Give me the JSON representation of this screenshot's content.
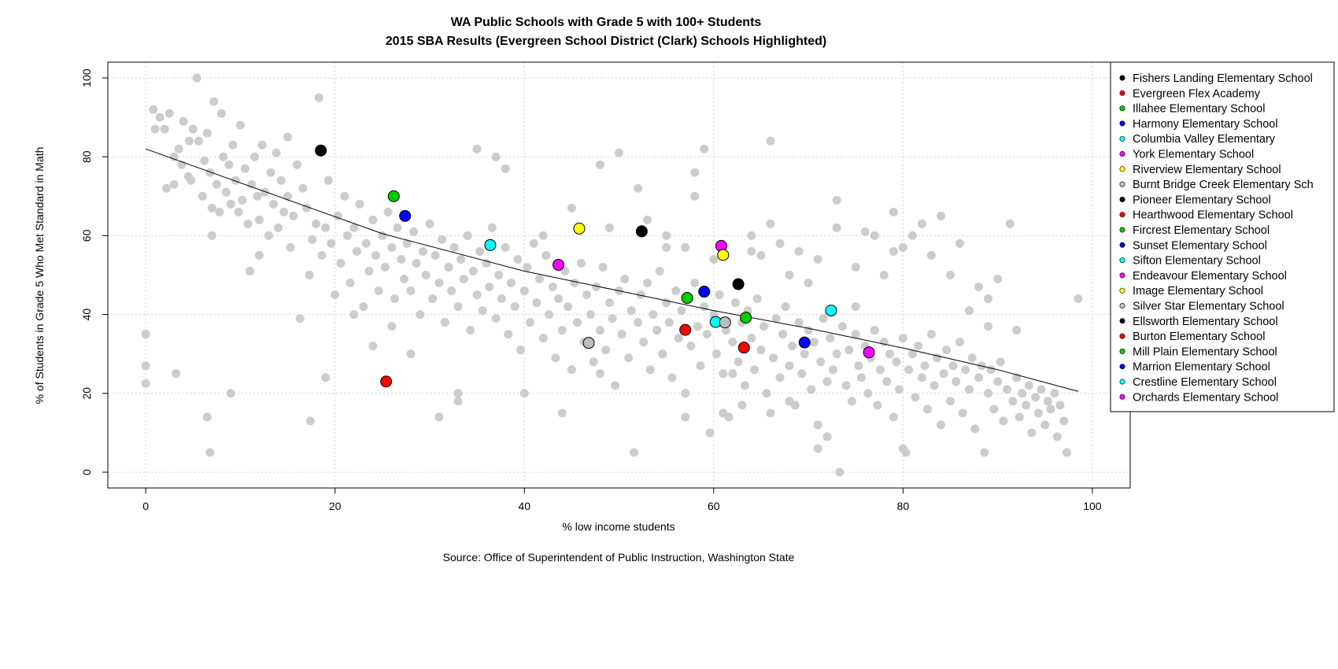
{
  "chart_data": {
    "type": "scatter",
    "title": "WA Public Schools with Grade 5 with 100+ Students",
    "subtitle": "2015 SBA Results (Evergreen School District (Clark) Schools Highlighted)",
    "xlabel": "% low income students",
    "ylabel": "% of Students in Grade 5 Who Met Standard in Math",
    "source": "Source: Office of Superintendent of Public Instruction, Washington State",
    "xlim": [
      -4,
      104
    ],
    "ylim": [
      -4,
      104
    ],
    "x_ticks": [
      0,
      20,
      40,
      60,
      80,
      100
    ],
    "y_ticks": [
      0,
      20,
      40,
      60,
      80,
      100
    ],
    "grid": true,
    "legend_position": "top-right",
    "background_color": "#cccccc",
    "trend_line": {
      "x": [
        0,
        25,
        40,
        50,
        60,
        70,
        80,
        90,
        98.5
      ],
      "y": [
        82,
        60.5,
        51,
        46,
        41,
        36.5,
        31.5,
        26,
        20.5
      ]
    },
    "highlighted": [
      {
        "name": "Fishers Landing Elementary School",
        "color": "#000000",
        "x": null,
        "y": null
      },
      {
        "name": "Evergreen Flex Academy",
        "color": "#ff0000",
        "x": 25.4,
        "y": 23
      },
      {
        "name": "Illahee Elementary School",
        "color": "#00cc00",
        "x": 26.2,
        "y": 70
      },
      {
        "name": "Harmony Elementary School",
        "color": "#0000ff",
        "x": 27.4,
        "y": 65
      },
      {
        "name": "Columbia Valley Elementary",
        "color": "#00ffff",
        "x": 36.4,
        "y": 57.6
      },
      {
        "name": "York Elementary School",
        "color": "#ff00ff",
        "x": 43.6,
        "y": 52.6
      },
      {
        "name": "Riverview Elementary School",
        "color": "#ffff00",
        "x": 45.8,
        "y": 61.8
      },
      {
        "name": "Burnt Bridge Creek Elementary Sch",
        "color": "#bebebe",
        "x": 46.8,
        "y": 32.8
      },
      {
        "name": "Pioneer Elementary School",
        "color": "#000000",
        "x": 52.4,
        "y": 61.1
      },
      {
        "name": "Hearthwood Elementary School",
        "color": "#ff0000",
        "x": 57.0,
        "y": 36.1
      },
      {
        "name": "Fircrest Elementary School",
        "color": "#00cc00",
        "x": 57.2,
        "y": 44.2
      },
      {
        "name": "Sunset Elementary School",
        "color": "#0000ff",
        "x": 59.0,
        "y": 45.8
      },
      {
        "name": "Sifton Elementary School",
        "color": "#00ffff",
        "x": 60.2,
        "y": 38.1
      },
      {
        "name": "Endeavour Elementary School",
        "color": "#ff00ff",
        "x": 60.8,
        "y": 57.4
      },
      {
        "name": "Image Elementary School",
        "color": "#ffff00",
        "x": 61.0,
        "y": 55.1
      },
      {
        "name": "Silver Star Elementary School",
        "color": "#bebebe",
        "x": 61.2,
        "y": 38.0
      },
      {
        "name": "Ellsworth Elementary School",
        "color": "#000000",
        "x": 62.6,
        "y": 47.7
      },
      {
        "name": "Burton Elementary School",
        "color": "#ff0000",
        "x": 63.2,
        "y": 31.6
      },
      {
        "name": "Mill Plain Elementary School",
        "color": "#00cc00",
        "x": 63.4,
        "y": 39.2
      },
      {
        "name": "Marrion Elementary School",
        "color": "#0000ff",
        "x": 69.6,
        "y": 32.9
      },
      {
        "name": "Crestline Elementary School",
        "color": "#00ffff",
        "x": 72.4,
        "y": 41.0
      },
      {
        "name": "Orchards Elementary School",
        "color": "#ff00ff",
        "x": 76.4,
        "y": 30.4
      },
      {
        "name": "Pioneer Elementary School",
        "color": "#000000",
        "x": 18.5,
        "y": 81.6
      }
    ],
    "background_points": [
      [
        0,
        35
      ],
      [
        0,
        27
      ],
      [
        0,
        22.5
      ],
      [
        0.8,
        92
      ],
      [
        1,
        87
      ],
      [
        1.5,
        90
      ],
      [
        2,
        87
      ],
      [
        2.2,
        72
      ],
      [
        2.5,
        91
      ],
      [
        3,
        73
      ],
      [
        3.2,
        25
      ],
      [
        3.5,
        82
      ],
      [
        3.8,
        78
      ],
      [
        4,
        89
      ],
      [
        4.5,
        75
      ],
      [
        4.6,
        84
      ],
      [
        4.8,
        74
      ],
      [
        5,
        87
      ],
      [
        5.4,
        100
      ],
      [
        5.6,
        84
      ],
      [
        6,
        70
      ],
      [
        6.2,
        79
      ],
      [
        6.5,
        86
      ],
      [
        6.8,
        76
      ],
      [
        7,
        67
      ],
      [
        7.2,
        94
      ],
      [
        7.5,
        73
      ],
      [
        7.8,
        66
      ],
      [
        8,
        91
      ],
      [
        8.2,
        80
      ],
      [
        8.5,
        71
      ],
      [
        8.8,
        78
      ],
      [
        9,
        68
      ],
      [
        9.2,
        83
      ],
      [
        9.5,
        74
      ],
      [
        9.8,
        66
      ],
      [
        10,
        88
      ],
      [
        10.2,
        69
      ],
      [
        10.5,
        77
      ],
      [
        10.8,
        63
      ],
      [
        11,
        51
      ],
      [
        11.2,
        73
      ],
      [
        11.5,
        80
      ],
      [
        11.8,
        70
      ],
      [
        12,
        64
      ],
      [
        12.3,
        83
      ],
      [
        12.6,
        71
      ],
      [
        13,
        60
      ],
      [
        13.2,
        76
      ],
      [
        13.5,
        68
      ],
      [
        13.8,
        81
      ],
      [
        14,
        62
      ],
      [
        14.3,
        74
      ],
      [
        14.6,
        66
      ],
      [
        15,
        70
      ],
      [
        15.3,
        57
      ],
      [
        15.6,
        65
      ],
      [
        16,
        78
      ],
      [
        16.3,
        39
      ],
      [
        16.6,
        72
      ],
      [
        17,
        67
      ],
      [
        17.3,
        50
      ],
      [
        17.6,
        59
      ],
      [
        18,
        63
      ],
      [
        18.3,
        95
      ],
      [
        18.6,
        55
      ],
      [
        19,
        62
      ],
      [
        19.3,
        74
      ],
      [
        19.6,
        58
      ],
      [
        20,
        45
      ],
      [
        20.3,
        65
      ],
      [
        20.6,
        53
      ],
      [
        21,
        70
      ],
      [
        21.3,
        60
      ],
      [
        21.6,
        48
      ],
      [
        22,
        62
      ],
      [
        22.3,
        56
      ],
      [
        22.6,
        68
      ],
      [
        23,
        42
      ],
      [
        23.3,
        58
      ],
      [
        23.6,
        51
      ],
      [
        24,
        64
      ],
      [
        24.3,
        55
      ],
      [
        24.6,
        46
      ],
      [
        25,
        60
      ],
      [
        25.3,
        52
      ],
      [
        25.6,
        66
      ],
      [
        26,
        57
      ],
      [
        26.3,
        44
      ],
      [
        26.6,
        62
      ],
      [
        27,
        54
      ],
      [
        27.3,
        49
      ],
      [
        27.6,
        58
      ],
      [
        28,
        46
      ],
      [
        28.3,
        61
      ],
      [
        28.6,
        53
      ],
      [
        29,
        40
      ],
      [
        29.3,
        56
      ],
      [
        29.6,
        50
      ],
      [
        30,
        63
      ],
      [
        30.3,
        44
      ],
      [
        30.6,
        55
      ],
      [
        31,
        48
      ],
      [
        31.3,
        59
      ],
      [
        31.6,
        38
      ],
      [
        32,
        52
      ],
      [
        32.3,
        46
      ],
      [
        32.6,
        57
      ],
      [
        33,
        42
      ],
      [
        33.3,
        54
      ],
      [
        33.6,
        49
      ],
      [
        34,
        60
      ],
      [
        34.3,
        36
      ],
      [
        34.6,
        51
      ],
      [
        35,
        45
      ],
      [
        35.3,
        56
      ],
      [
        35.6,
        41
      ],
      [
        36,
        53
      ],
      [
        36.3,
        47
      ],
      [
        36.6,
        62
      ],
      [
        37,
        39
      ],
      [
        37.3,
        50
      ],
      [
        37.6,
        44
      ],
      [
        38,
        57
      ],
      [
        38.3,
        35
      ],
      [
        38.6,
        48
      ],
      [
        39,
        42
      ],
      [
        39.3,
        54
      ],
      [
        39.6,
        31
      ],
      [
        40,
        46
      ],
      [
        40.3,
        52
      ],
      [
        40.6,
        38
      ],
      [
        41,
        58
      ],
      [
        41.3,
        43
      ],
      [
        41.6,
        49
      ],
      [
        42,
        34
      ],
      [
        42.3,
        55
      ],
      [
        42.6,
        40
      ],
      [
        43,
        47
      ],
      [
        43.3,
        29
      ],
      [
        43.6,
        44
      ],
      [
        44,
        36
      ],
      [
        44.3,
        51
      ],
      [
        44.6,
        42
      ],
      [
        45,
        26
      ],
      [
        45.3,
        48
      ],
      [
        45.6,
        38
      ],
      [
        46,
        53
      ],
      [
        46.3,
        33
      ],
      [
        46.6,
        45
      ],
      [
        47,
        40
      ],
      [
        47.3,
        28
      ],
      [
        47.6,
        47
      ],
      [
        48,
        36
      ],
      [
        48.3,
        52
      ],
      [
        48.6,
        31
      ],
      [
        49,
        43
      ],
      [
        49.3,
        39
      ],
      [
        49.6,
        22
      ],
      [
        50,
        46
      ],
      [
        50.3,
        35
      ],
      [
        50.6,
        49
      ],
      [
        51,
        29
      ],
      [
        51.3,
        41
      ],
      [
        51.6,
        5
      ],
      [
        52,
        38
      ],
      [
        52.3,
        45
      ],
      [
        52.6,
        33
      ],
      [
        53,
        48
      ],
      [
        53.3,
        26
      ],
      [
        53.6,
        40
      ],
      [
        54,
        36
      ],
      [
        54.3,
        51
      ],
      [
        54.6,
        30
      ],
      [
        55,
        43
      ],
      [
        55.3,
        38
      ],
      [
        55.6,
        24
      ],
      [
        56,
        46
      ],
      [
        56.3,
        34
      ],
      [
        56.6,
        41
      ],
      [
        57,
        20
      ],
      [
        57.3,
        44
      ],
      [
        57.6,
        32
      ],
      [
        58,
        48
      ],
      [
        58.3,
        37
      ],
      [
        58.6,
        27
      ],
      [
        59,
        42
      ],
      [
        59.3,
        35
      ],
      [
        59.6,
        10
      ],
      [
        60,
        40
      ],
      [
        60.3,
        30
      ],
      [
        60.6,
        45
      ],
      [
        61,
        25
      ],
      [
        61.3,
        36
      ],
      [
        61.6,
        14
      ],
      [
        62,
        33
      ],
      [
        62.3,
        43
      ],
      [
        62.6,
        28
      ],
      [
        63,
        38
      ],
      [
        63.3,
        22
      ],
      [
        63.6,
        41
      ],
      [
        64,
        34
      ],
      [
        64.3,
        26
      ],
      [
        64.6,
        44
      ],
      [
        65,
        31
      ],
      [
        65.3,
        37
      ],
      [
        65.6,
        20
      ],
      [
        66,
        84
      ],
      [
        66.3,
        29
      ],
      [
        66.6,
        39
      ],
      [
        67,
        24
      ],
      [
        67.3,
        35
      ],
      [
        67.6,
        42
      ],
      [
        68,
        27
      ],
      [
        68.3,
        32
      ],
      [
        68.6,
        17
      ],
      [
        69,
        38
      ],
      [
        69.3,
        25
      ],
      [
        69.6,
        30
      ],
      [
        70,
        36
      ],
      [
        70.3,
        21
      ],
      [
        70.6,
        33
      ],
      [
        71,
        12
      ],
      [
        71.3,
        28
      ],
      [
        71.6,
        39
      ],
      [
        72,
        23
      ],
      [
        72.3,
        34
      ],
      [
        72.6,
        26
      ],
      [
        73,
        30
      ],
      [
        73.3,
        0
      ],
      [
        73.6,
        37
      ],
      [
        74,
        22
      ],
      [
        74.3,
        31
      ],
      [
        74.6,
        18
      ],
      [
        75,
        35
      ],
      [
        75.3,
        27
      ],
      [
        75.6,
        24
      ],
      [
        76,
        32
      ],
      [
        76.3,
        20
      ],
      [
        76.6,
        29
      ],
      [
        77,
        36
      ],
      [
        77.3,
        17
      ],
      [
        77.6,
        26
      ],
      [
        78,
        33
      ],
      [
        78.3,
        23
      ],
      [
        78.6,
        30
      ],
      [
        79,
        14
      ],
      [
        79.3,
        28
      ],
      [
        79.6,
        21
      ],
      [
        80,
        34
      ],
      [
        80.3,
        5
      ],
      [
        80.6,
        26
      ],
      [
        81,
        30
      ],
      [
        81.3,
        19
      ],
      [
        81.6,
        32
      ],
      [
        82,
        24
      ],
      [
        82.3,
        27
      ],
      [
        82.6,
        16
      ],
      [
        83,
        35
      ],
      [
        83.3,
        22
      ],
      [
        83.6,
        29
      ],
      [
        84,
        12
      ],
      [
        84.3,
        25
      ],
      [
        84.6,
        31
      ],
      [
        85,
        18
      ],
      [
        85.3,
        27
      ],
      [
        85.6,
        23
      ],
      [
        86,
        33
      ],
      [
        86.3,
        15
      ],
      [
        86.6,
        26
      ],
      [
        87,
        21
      ],
      [
        87.3,
        29
      ],
      [
        87.6,
        11
      ],
      [
        88,
        24
      ],
      [
        88.3,
        27
      ],
      [
        88.6,
        5
      ],
      [
        89,
        20
      ],
      [
        89.3,
        26
      ],
      [
        89.6,
        16
      ],
      [
        90,
        23
      ],
      [
        90.3,
        28
      ],
      [
        90.6,
        13
      ],
      [
        91,
        21
      ],
      [
        91.3,
        63
      ],
      [
        91.6,
        18
      ],
      [
        92,
        24
      ],
      [
        92.3,
        14
      ],
      [
        92.6,
        20
      ],
      [
        93,
        17
      ],
      [
        93.3,
        22
      ],
      [
        93.6,
        10
      ],
      [
        94,
        19
      ],
      [
        94.3,
        15
      ],
      [
        94.6,
        21
      ],
      [
        95,
        12
      ],
      [
        95.3,
        18
      ],
      [
        95.6,
        16
      ],
      [
        96,
        20
      ],
      [
        96.3,
        9
      ],
      [
        96.6,
        17
      ],
      [
        97,
        13
      ],
      [
        97.3,
        5
      ],
      [
        98.5,
        44
      ],
      [
        3,
        80
      ],
      [
        7,
        60
      ],
      [
        12,
        55
      ],
      [
        15,
        85
      ],
      [
        22,
        40
      ],
      [
        28,
        30
      ],
      [
        33,
        20
      ],
      [
        35,
        82
      ],
      [
        40,
        20
      ],
      [
        44,
        15
      ],
      [
        48,
        25
      ],
      [
        52,
        72
      ],
      [
        55,
        60
      ],
      [
        58,
        70
      ],
      [
        58,
        76
      ],
      [
        59,
        82
      ],
      [
        64,
        60
      ],
      [
        66,
        63
      ],
      [
        68,
        50
      ],
      [
        70,
        48
      ],
      [
        73,
        62
      ],
      [
        75,
        42
      ],
      [
        76,
        61
      ],
      [
        78,
        50
      ],
      [
        79,
        66
      ],
      [
        80,
        57
      ],
      [
        82,
        63
      ],
      [
        84,
        65
      ],
      [
        85,
        50
      ],
      [
        88,
        47
      ],
      [
        89,
        44
      ],
      [
        90,
        49
      ],
      [
        92,
        36
      ],
      [
        9,
        20
      ],
      [
        6.8,
        5
      ],
      [
        6.5,
        14
      ],
      [
        19,
        24
      ],
      [
        17.4,
        13
      ],
      [
        37,
        80
      ],
      [
        38,
        77
      ],
      [
        42,
        60
      ],
      [
        45,
        67
      ],
      [
        48,
        78
      ],
      [
        49,
        62
      ],
      [
        50,
        81
      ],
      [
        53,
        64
      ],
      [
        55,
        57
      ],
      [
        57,
        57
      ],
      [
        60,
        54
      ],
      [
        64,
        56
      ],
      [
        65,
        55
      ],
      [
        67,
        58
      ],
      [
        69,
        56
      ],
      [
        71,
        54
      ],
      [
        73,
        69
      ],
      [
        75,
        52
      ],
      [
        77,
        60
      ],
      [
        79,
        56
      ],
      [
        81,
        60
      ],
      [
        83,
        55
      ],
      [
        86,
        58
      ],
      [
        87,
        41
      ],
      [
        89,
        37
      ],
      [
        31,
        14
      ],
      [
        33,
        18
      ],
      [
        26,
        37
      ],
      [
        24,
        32
      ],
      [
        57,
        14
      ],
      [
        57,
        20
      ],
      [
        61,
        15
      ],
      [
        62,
        25
      ],
      [
        63,
        17
      ],
      [
        66,
        15
      ],
      [
        68,
        18
      ],
      [
        71,
        6
      ],
      [
        72,
        9
      ],
      [
        80,
        6
      ]
    ]
  }
}
